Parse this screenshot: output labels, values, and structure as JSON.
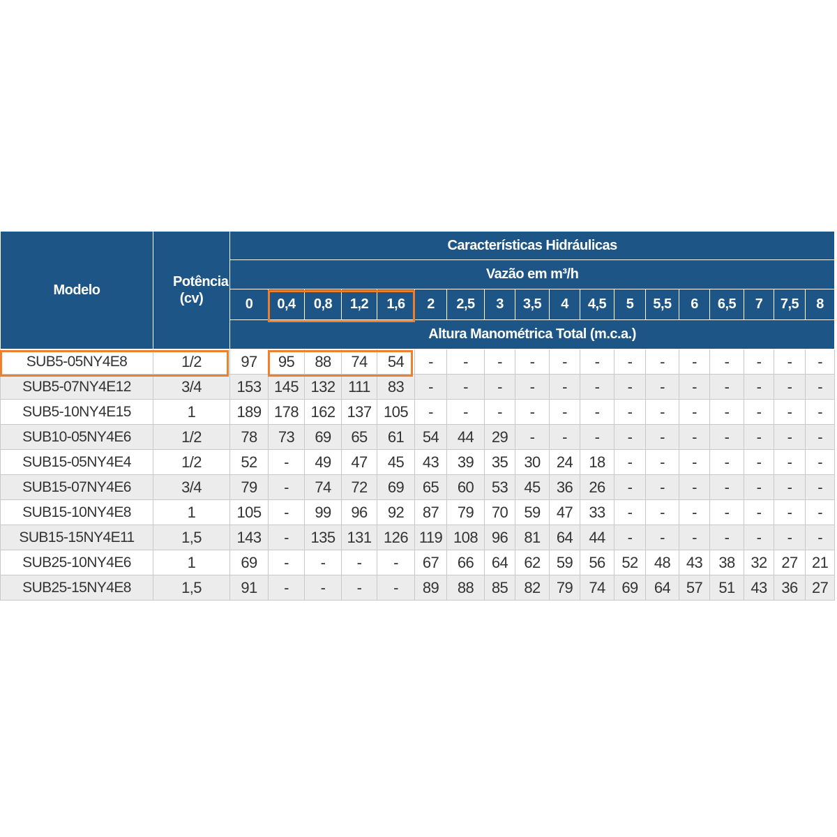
{
  "table": {
    "model_header": "Modelo",
    "power_header": "Potência (cv)",
    "hydraulic_header": "Características Hidráulicas",
    "flow_header": "Vazão em m³/h",
    "head_header": "Altura Manométrica Total (m.c.a.)",
    "flows": [
      "0",
      "0,4",
      "0,8",
      "1,2",
      "1,6",
      "2",
      "2,5",
      "3",
      "3,5",
      "4",
      "4,5",
      "5",
      "5,5",
      "6",
      "6,5",
      "7",
      "7,5",
      "8"
    ],
    "rows": [
      {
        "model": "SUB5-05NY4E8",
        "power": "1/2",
        "values": [
          "97",
          "95",
          "88",
          "74",
          "54",
          "-",
          "-",
          "-",
          "-",
          "-",
          "-",
          "-",
          "-",
          "-",
          "-",
          "-",
          "-",
          "-"
        ]
      },
      {
        "model": "SUB5-07NY4E12",
        "power": "3/4",
        "values": [
          "153",
          "145",
          "132",
          "111",
          "83",
          "-",
          "-",
          "-",
          "-",
          "-",
          "-",
          "-",
          "-",
          "-",
          "-",
          "-",
          "-",
          "-"
        ]
      },
      {
        "model": "SUB5-10NY4E15",
        "power": "1",
        "values": [
          "189",
          "178",
          "162",
          "137",
          "105",
          "-",
          "-",
          "-",
          "-",
          "-",
          "-",
          "-",
          "-",
          "-",
          "-",
          "-",
          "-",
          "-"
        ]
      },
      {
        "model": "SUB10-05NY4E6",
        "power": "1/2",
        "values": [
          "78",
          "73",
          "69",
          "65",
          "61",
          "54",
          "44",
          "29",
          "-",
          "-",
          "-",
          "-",
          "-",
          "-",
          "-",
          "-",
          "-",
          "-"
        ]
      },
      {
        "model": "SUB15-05NY4E4",
        "power": "1/2",
        "values": [
          "52",
          "-",
          "49",
          "47",
          "45",
          "43",
          "39",
          "35",
          "30",
          "24",
          "18",
          "-",
          "-",
          "-",
          "-",
          "-",
          "-",
          "-"
        ]
      },
      {
        "model": "SUB15-07NY4E6",
        "power": "3/4",
        "values": [
          "79",
          "-",
          "74",
          "72",
          "69",
          "65",
          "60",
          "53",
          "45",
          "36",
          "26",
          "-",
          "-",
          "-",
          "-",
          "-",
          "-",
          "-"
        ]
      },
      {
        "model": "SUB15-10NY4E8",
        "power": "1",
        "values": [
          "105",
          "-",
          "99",
          "96",
          "92",
          "87",
          "79",
          "70",
          "59",
          "47",
          "33",
          "-",
          "-",
          "-",
          "-",
          "-",
          "-",
          "-"
        ]
      },
      {
        "model": "SUB15-15NY4E11",
        "power": "1,5",
        "values": [
          "143",
          "-",
          "135",
          "131",
          "126",
          "119",
          "108",
          "96",
          "81",
          "64",
          "44",
          "-",
          "-",
          "-",
          "-",
          "-",
          "-",
          "-"
        ]
      },
      {
        "model": "SUB25-10NY4E6",
        "power": "1",
        "values": [
          "69",
          "-",
          "-",
          "-",
          "-",
          "67",
          "66",
          "64",
          "62",
          "59",
          "56",
          "52",
          "48",
          "43",
          "38",
          "32",
          "27",
          "21"
        ]
      },
      {
        "model": "SUB25-15NY4E8",
        "power": "1,5",
        "values": [
          "91",
          "-",
          "-",
          "-",
          "-",
          "89",
          "88",
          "85",
          "82",
          "79",
          "74",
          "69",
          "64",
          "57",
          "51",
          "43",
          "36",
          "27"
        ]
      }
    ]
  },
  "colors": {
    "header_bg": "#1d5586",
    "highlight": "#f07f2a",
    "row_alt": "#ececec"
  },
  "highlight": {
    "model": "SUB5-05NY4E8",
    "flows": [
      "0,4",
      "0,8",
      "1,2",
      "1,6"
    ]
  }
}
